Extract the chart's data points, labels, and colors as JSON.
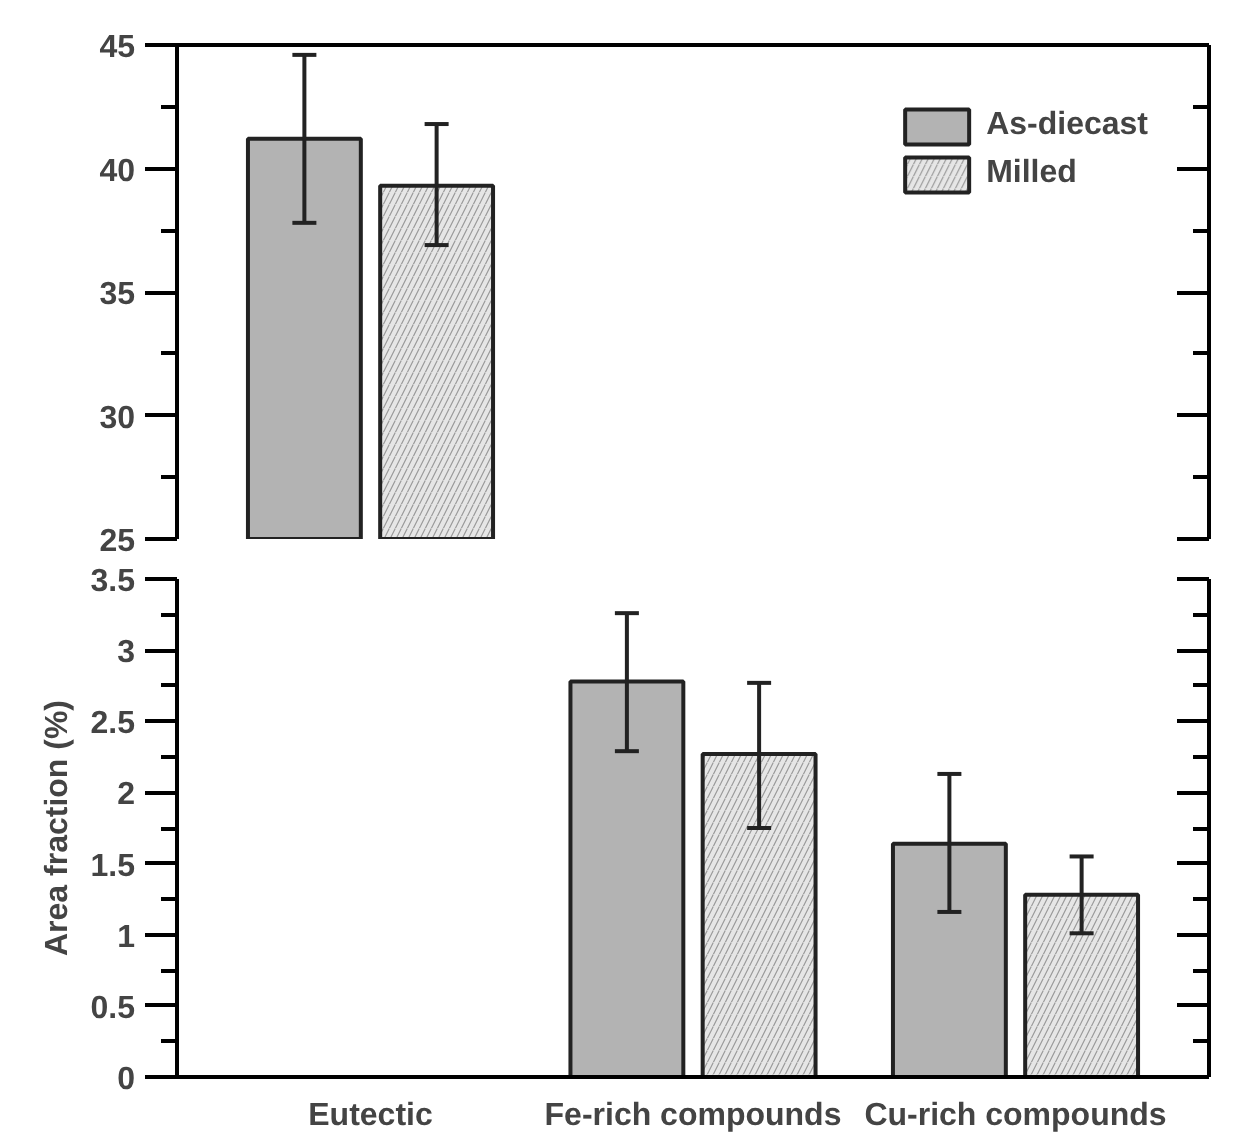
{
  "chart_data": [
    {
      "type": "bar",
      "categories": [
        null,
        null,
        null
      ],
      "ylim": [
        25,
        45
      ],
      "yticks": [
        25,
        {
          "value": 27.5,
          "label": null
        },
        30,
        {
          "value": 32.5,
          "label": null
        },
        35,
        {
          "value": 37.5,
          "label": null
        },
        40,
        {
          "value": 42.5,
          "label": null
        },
        45
      ],
      "tick_labels": "y",
      "legend": "top right",
      "series": [
        {
          "name": "As-diecast",
          "color": "#b3b3b3",
          "values": [
            41.2,
            null,
            null
          ],
          "errors": [
            [
              37.8,
              44.6
            ],
            null,
            null
          ]
        },
        {
          "name": "Milled",
          "color": "#e6e6e6",
          "values": [
            39.3,
            null,
            null
          ],
          "errors": [
            [
              36.9,
              41.8
            ],
            null,
            null
          ]
        }
      ]
    },
    {
      "type": "bar",
      "categories": [
        "Eutectic",
        "Fe-rich compounds",
        "Cu-rich compounds"
      ],
      "ylabel": "Area fraction (%)",
      "ylim": [
        0,
        3.5
      ],
      "yticks": [
        0,
        {
          "value": 0.25,
          "label": null
        },
        0.5,
        {
          "value": 0.75,
          "label": null
        },
        1,
        {
          "value": 1.25,
          "label": null
        },
        1.5,
        {
          "value": 1.75,
          "label": null
        },
        2,
        {
          "value": 2.25,
          "label": null
        },
        2.5,
        {
          "value": 2.75,
          "label": null
        },
        3,
        {
          "value": 3.25,
          "label": null
        },
        3.5
      ],
      "series": [
        {
          "color": "#b3b3b3",
          "values": [
            null,
            2.78,
            1.64
          ],
          "errors": [
            null,
            [
              2.29,
              3.26
            ],
            [
              1.16,
              2.13
            ]
          ]
        },
        {
          "color": "#e6e6e6",
          "values": [
            null,
            2.27,
            1.28
          ],
          "errors": [
            null,
            [
              1.75,
              2.77
            ],
            [
              1.01,
              1.55
            ]
          ]
        }
      ]
    }
  ]
}
